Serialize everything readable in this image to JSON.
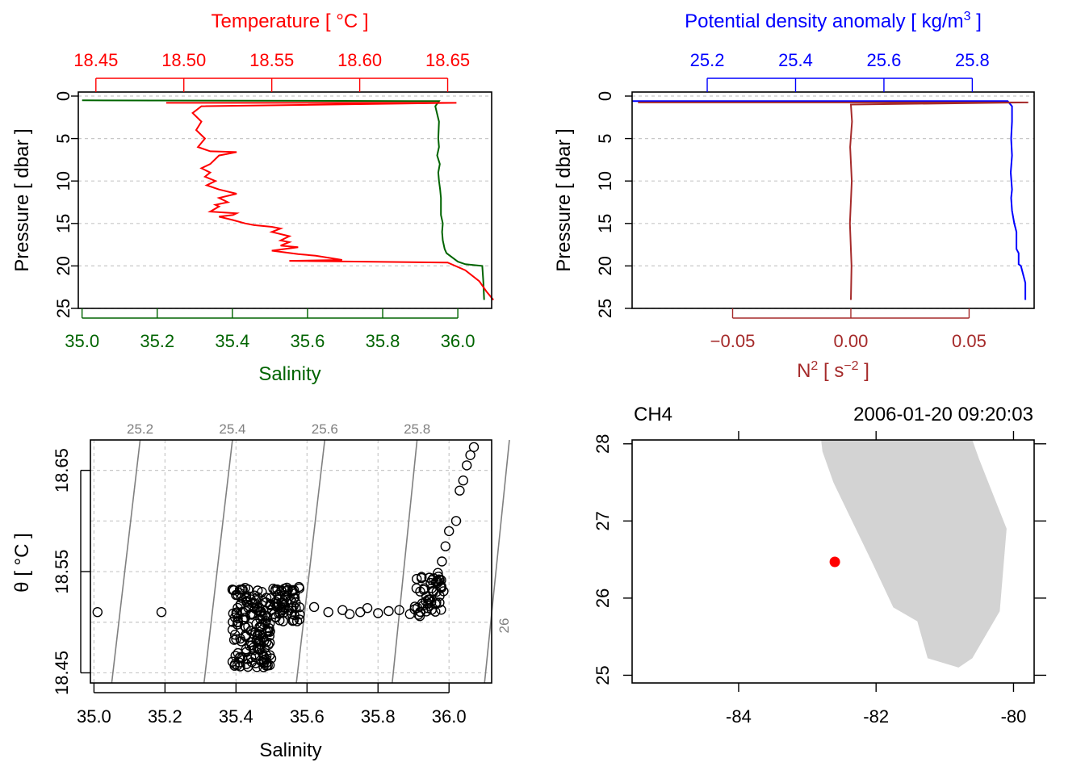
{
  "colors": {
    "temperature": "#ff0000",
    "salinity": "#006400",
    "density": "#0000ff",
    "n2": "#a52a2a",
    "grid": "#c8c8c8",
    "isopycnal": "#808080",
    "land": "#d3d3d3",
    "station": "#ff0000"
  },
  "chart_data": [
    {
      "type": "line",
      "panel": "profile-ts",
      "ylabel": "Pressure [ dbar ]",
      "ylim": [
        25,
        0
      ],
      "yticks": [
        "0",
        "5",
        "10",
        "15",
        "20",
        "25"
      ],
      "top_axis": {
        "label": "Temperature [ °C ]",
        "lim": [
          18.44,
          18.675
        ],
        "ticks": [
          18.45,
          18.5,
          18.55,
          18.6,
          18.65
        ],
        "tick_labels": [
          "18.45",
          "18.50",
          "18.55",
          "18.60",
          "18.65"
        ]
      },
      "bottom_axis": {
        "label": "Salinity",
        "lim": [
          34.99,
          36.09
        ],
        "ticks": [
          35.0,
          35.2,
          35.4,
          35.6,
          35.8,
          36.0
        ],
        "tick_labels": [
          "35.0",
          "35.2",
          "35.4",
          "35.6",
          "35.8",
          "36.0"
        ]
      },
      "series": [
        {
          "name": "Temperature",
          "x": [
            18.49,
            18.655,
            18.51,
            18.505,
            18.51,
            18.507,
            18.512,
            18.508,
            18.515,
            18.53,
            18.52,
            18.515,
            18.51,
            18.515,
            18.512,
            18.518,
            18.513,
            18.52,
            18.53,
            18.52,
            18.525,
            18.518,
            18.52,
            18.515,
            18.53,
            18.528,
            18.52,
            18.528,
            18.535,
            18.54,
            18.55,
            18.555,
            18.55,
            18.56,
            18.555,
            18.56,
            18.555,
            18.565,
            18.55,
            18.565,
            18.575,
            18.59,
            18.56,
            18.65,
            18.66,
            18.668,
            18.672,
            18.676
          ],
          "y": [
            0.8,
            0.8,
            1.2,
            2.0,
            3.0,
            4.0,
            5.0,
            6.0,
            6.5,
            6.6,
            7.0,
            8.0,
            8.5,
            9.0,
            9.5,
            10.0,
            10.5,
            11.0,
            11.5,
            12.0,
            12.5,
            12.8,
            13.0,
            13.6,
            13.8,
            14.0,
            14.2,
            14.6,
            15.0,
            15.2,
            15.4,
            15.6,
            16.0,
            16.5,
            17.0,
            17.2,
            17.6,
            17.8,
            18.2,
            18.6,
            18.8,
            19.3,
            19.4,
            19.6,
            20.5,
            21.8,
            23.0,
            24.0
          ]
        },
        {
          "name": "Salinity",
          "x": [
            35.0,
            35.95,
            35.94,
            35.95,
            35.948,
            35.95,
            35.945,
            35.952,
            35.948,
            35.95,
            35.953,
            35.955,
            35.955,
            35.96,
            35.958,
            35.96,
            35.965,
            35.97,
            36.0,
            36.02,
            36.065,
            36.068,
            36.07
          ],
          "y": [
            0.5,
            0.6,
            1.2,
            3.0,
            5.0,
            6.0,
            7.0,
            8.0,
            9.0,
            10.0,
            11.0,
            12.0,
            14.0,
            15.0,
            16.0,
            17.0,
            18.0,
            18.5,
            19.5,
            19.8,
            20.0,
            22.0,
            24.0
          ]
        }
      ]
    },
    {
      "type": "line",
      "panel": "profile-density",
      "ylabel": "Pressure [ dbar ]",
      "ylim": [
        25,
        0
      ],
      "yticks": [
        "0",
        "5",
        "10",
        "15",
        "20",
        "25"
      ],
      "top_axis": {
        "label": "Potential density anomaly [ kg/m",
        "label_sup": "3",
        "label_end": " ]",
        "lim": [
          25.03,
          25.94
        ],
        "ticks": [
          25.2,
          25.4,
          25.6,
          25.8
        ],
        "tick_labels": [
          "25.2",
          "25.4",
          "25.6",
          "25.8"
        ]
      },
      "bottom_axis": {
        "label": "N",
        "label_sup": "2",
        "label_mid": " [ s",
        "label_sup2": "−2",
        "label_end": " ]",
        "lim": [
          -0.0925,
          0.0775
        ],
        "ticks": [
          -0.05,
          0.0,
          0.05
        ],
        "tick_labels": [
          "−0.05",
          "0.00",
          "0.05"
        ]
      },
      "series": [
        {
          "name": "Potential density anomaly",
          "x": [
            25.03,
            25.88,
            25.89,
            25.89,
            25.888,
            25.89,
            25.887,
            25.89,
            25.888,
            25.89,
            25.895,
            25.9,
            25.9,
            25.905,
            25.905,
            25.91,
            25.92,
            25.92
          ],
          "y": [
            0.6,
            0.6,
            1.2,
            3.0,
            5.0,
            7.0,
            9.0,
            11.0,
            12.0,
            13.5,
            15.0,
            16.0,
            18.0,
            18.5,
            19.8,
            20.0,
            22.0,
            24.0
          ]
        },
        {
          "name": "N2",
          "x": [
            -0.09,
            0.075,
            0.0,
            0.0005,
            -0.0003,
            0.0004,
            -0.0004,
            0.0003,
            0.0
          ],
          "y": [
            0.75,
            0.75,
            1.0,
            3.0,
            6.0,
            10.0,
            15.0,
            20.0,
            24.0
          ]
        }
      ]
    },
    {
      "type": "scatter",
      "panel": "ts-diagram",
      "xlabel": "Salinity",
      "ylabel": "θ [ °C ]",
      "xlim": [
        34.99,
        36.12
      ],
      "ylim": [
        18.44,
        18.68
      ],
      "xticks": [
        35.0,
        35.2,
        35.4,
        35.6,
        35.8,
        36.0
      ],
      "xtick_labels": [
        "35.0",
        "35.2",
        "35.4",
        "35.6",
        "35.8",
        "36.0"
      ],
      "yticks": [
        18.45,
        18.55,
        18.65
      ],
      "ytick_labels": [
        "18.45",
        "18.55",
        "18.65"
      ],
      "isopycnals": [
        {
          "label": "25.2",
          "s_top": 35.13,
          "s_bottom": 35.05
        },
        {
          "label": "25.4",
          "s_top": 35.39,
          "s_bottom": 35.31
        },
        {
          "label": "25.6",
          "s_top": 35.65,
          "s_bottom": 35.57
        },
        {
          "label": "25.8",
          "s_top": 35.91,
          "s_bottom": 35.84
        },
        {
          "label": "26",
          "s_top": 36.17,
          "s_bottom": 36.1
        }
      ],
      "points": [
        [
          35.01,
          18.51
        ],
        [
          35.19,
          18.51
        ],
        [
          35.62,
          18.515
        ],
        [
          35.66,
          18.51
        ],
        [
          35.7,
          18.512
        ],
        [
          35.72,
          18.508
        ],
        [
          35.75,
          18.51
        ],
        [
          35.77,
          18.514
        ],
        [
          35.8,
          18.509
        ],
        [
          35.83,
          18.511
        ],
        [
          35.86,
          18.512
        ],
        [
          35.89,
          18.508
        ],
        [
          35.92,
          18.51
        ],
        [
          35.95,
          18.52
        ],
        [
          35.965,
          18.53
        ],
        [
          35.97,
          18.545
        ],
        [
          35.98,
          18.56
        ],
        [
          35.99,
          18.575
        ],
        [
          36.0,
          18.59
        ],
        [
          36.02,
          18.6
        ],
        [
          36.03,
          18.63
        ],
        [
          36.04,
          18.64
        ],
        [
          36.05,
          18.655
        ],
        [
          36.06,
          18.665
        ],
        [
          36.07,
          18.673
        ]
      ],
      "clusters": [
        {
          "s_range": [
            35.39,
            35.58
          ],
          "t_range": [
            18.5,
            18.535
          ],
          "count": 130
        },
        {
          "s_range": [
            35.39,
            35.5
          ],
          "t_range": [
            18.455,
            18.5
          ],
          "count": 90
        },
        {
          "s_range": [
            35.9,
            35.99
          ],
          "t_range": [
            18.505,
            18.55
          ],
          "count": 50
        }
      ]
    },
    {
      "type": "map",
      "panel": "station-map",
      "title_left": "CH4",
      "title_right": "2006-01-20 09:20:03",
      "xlim": [
        -85.55,
        -79.7
      ],
      "ylim": [
        24.9,
        28.05
      ],
      "xticks": [
        -84,
        -82,
        -80
      ],
      "xtick_labels": [
        "-84",
        "-82",
        "-80"
      ],
      "yticks": [
        25,
        26,
        27,
        28
      ],
      "ytick_labels": [
        "25",
        "26",
        "27",
        "28"
      ],
      "station": {
        "lon": -82.6,
        "lat": 26.47
      },
      "coastline": [
        [
          -82.8,
          28.05
        ],
        [
          -82.78,
          27.9
        ],
        [
          -82.62,
          27.5
        ],
        [
          -82.35,
          27.0
        ],
        [
          -82.05,
          26.45
        ],
        [
          -81.75,
          25.88
        ],
        [
          -81.4,
          25.7
        ],
        [
          -81.25,
          25.22
        ],
        [
          -80.8,
          25.1
        ],
        [
          -80.6,
          25.22
        ],
        [
          -80.2,
          25.83
        ],
        [
          -80.1,
          26.9
        ],
        [
          -80.5,
          27.8
        ],
        [
          -80.6,
          28.05
        ]
      ]
    }
  ]
}
